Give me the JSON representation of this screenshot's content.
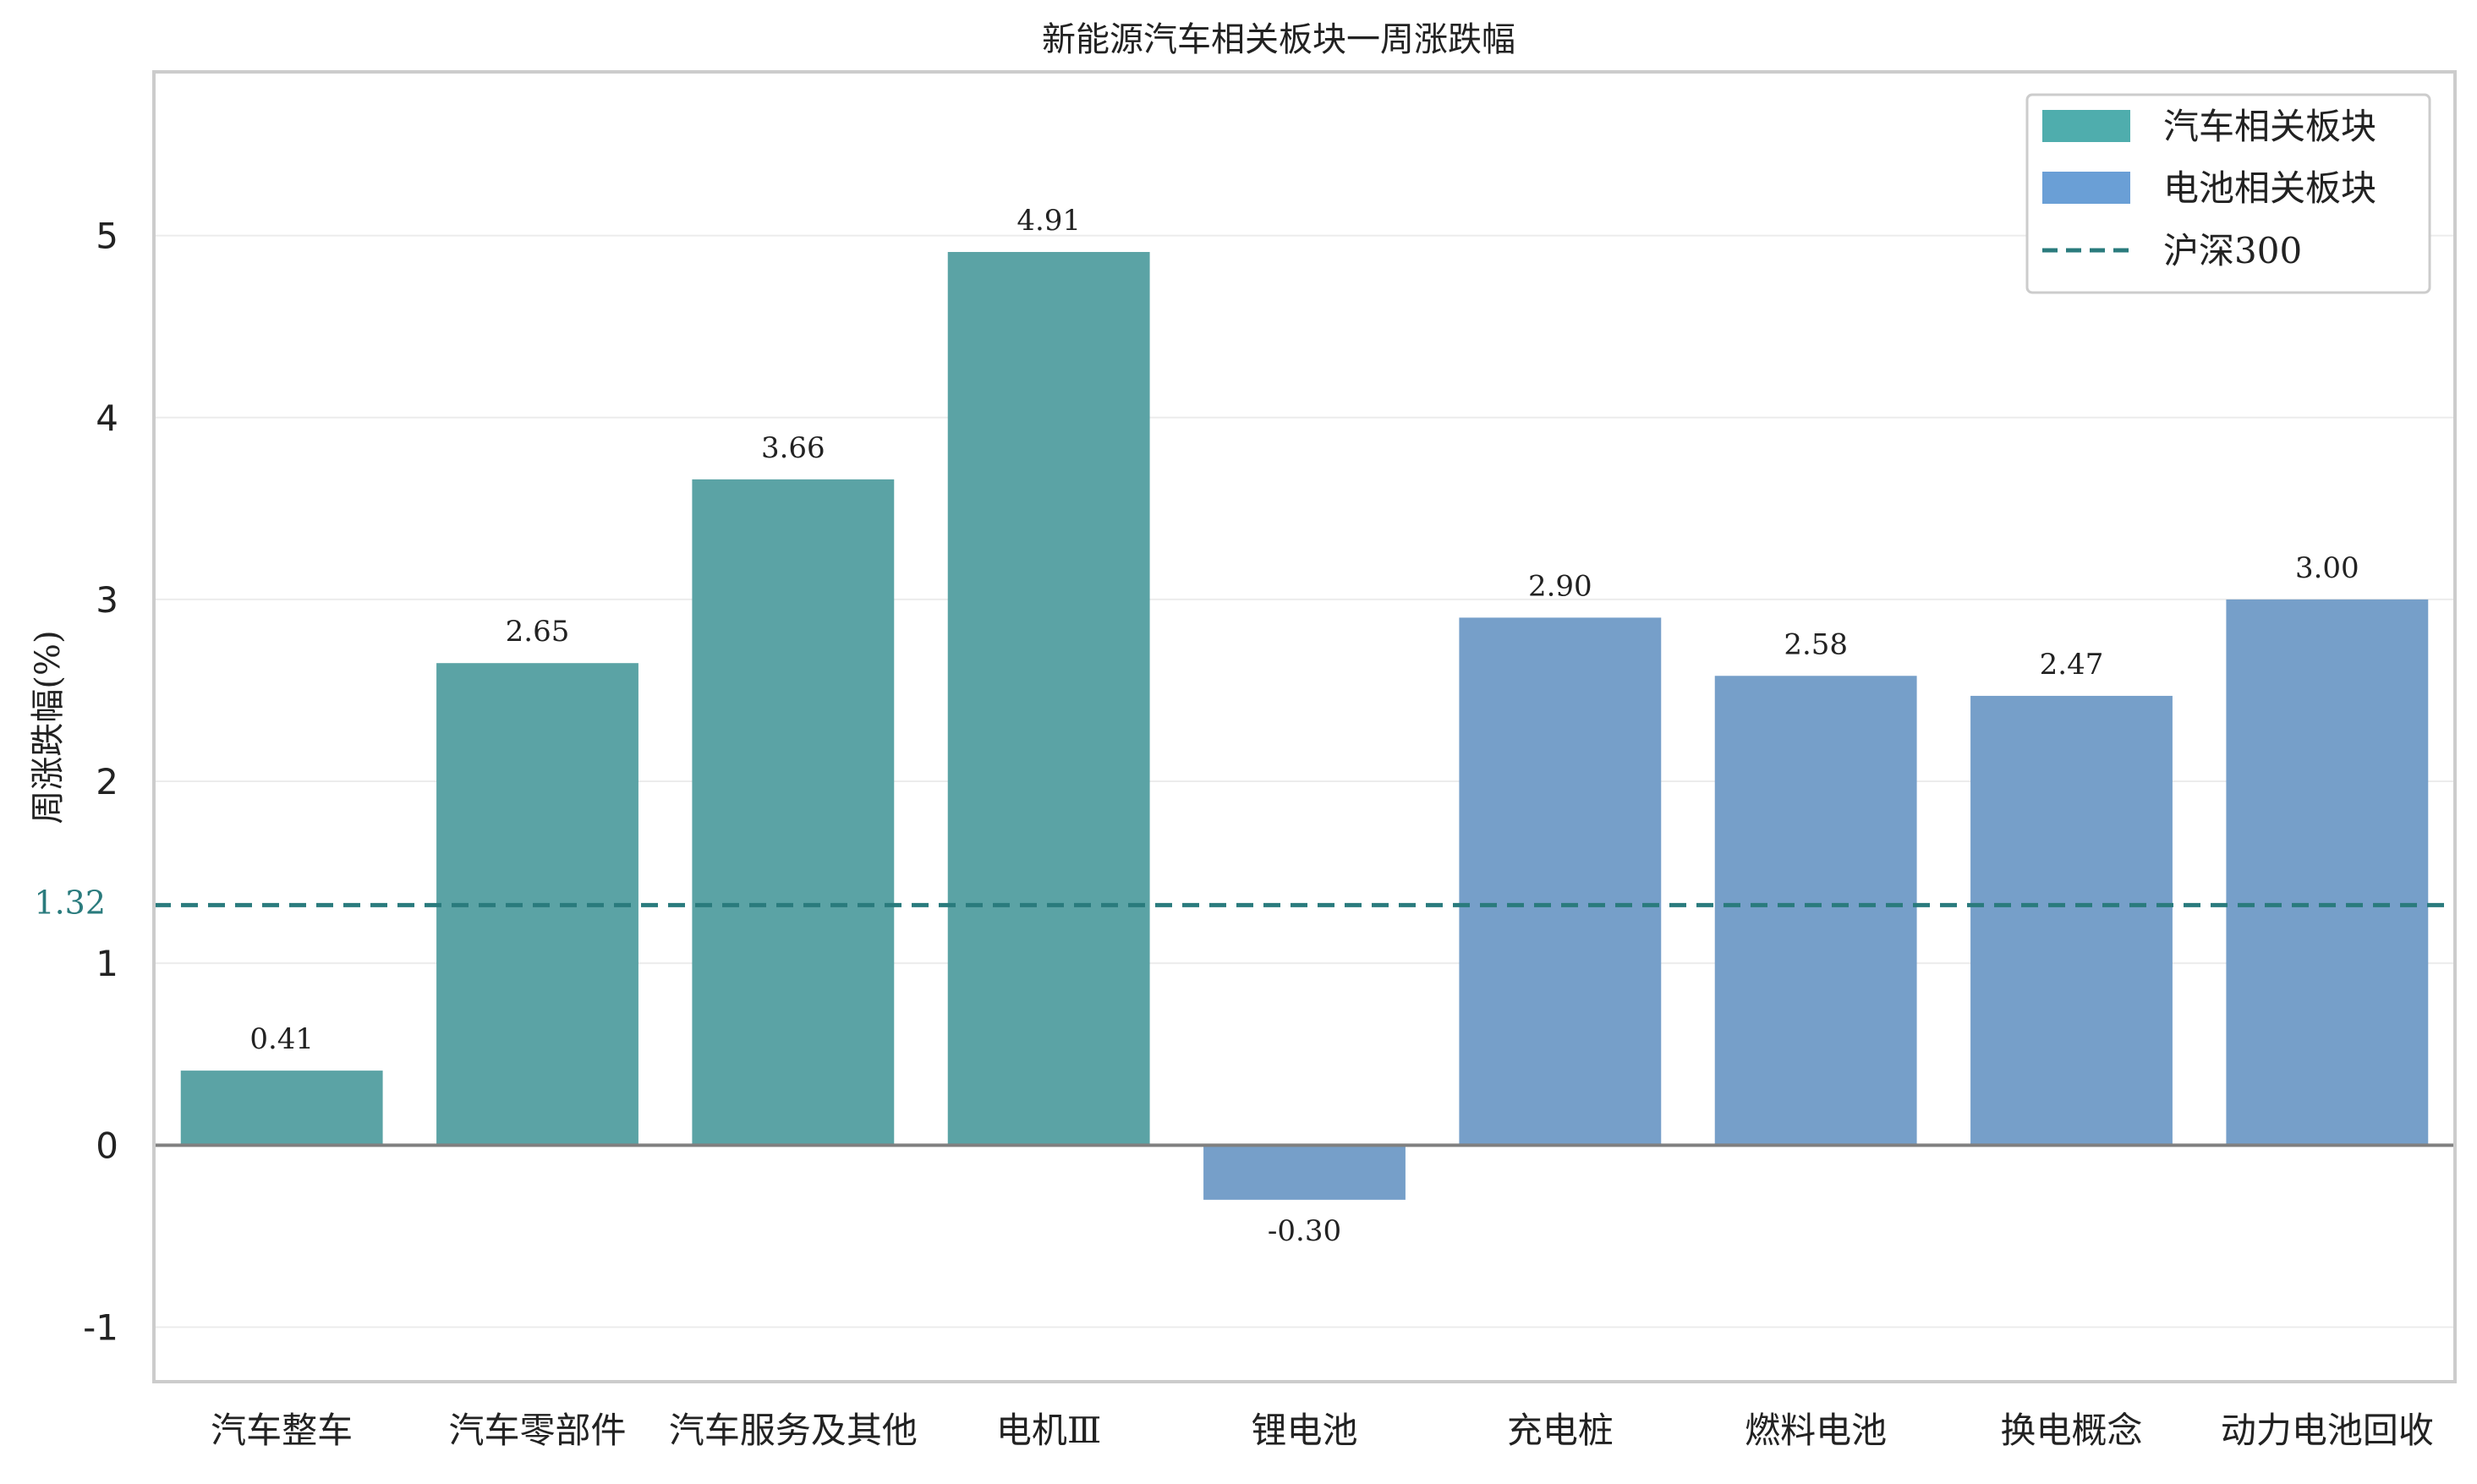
{
  "chart_data": {
    "type": "bar",
    "title": "新能源汽车相关板块一周涨跌幅",
    "xlabel": "",
    "ylabel": "周涨跌幅(%)",
    "categories": [
      "汽车整车",
      "汽车零部件",
      "汽车服务及其他",
      "电机Ⅲ",
      "锂电池",
      "充电桩",
      "燃料电池",
      "换电概念",
      "动力电池回收"
    ],
    "values": [
      0.41,
      2.65,
      3.66,
      4.91,
      -0.3,
      2.9,
      2.58,
      2.47,
      3.0
    ],
    "value_labels": [
      "0.41",
      "2.65",
      "3.66",
      "4.91",
      "-0.30",
      "2.90",
      "2.58",
      "2.47",
      "3.00"
    ],
    "groups": [
      "汽车相关板块",
      "汽车相关板块",
      "汽车相关板块",
      "汽车相关板块",
      "电池相关板块",
      "电池相关板块",
      "电池相关板块",
      "电池相关板块",
      "电池相关板块"
    ],
    "series": [
      {
        "name": "汽车相关板块",
        "color": "#5BA3A5",
        "legend_color": "#4FADAD"
      },
      {
        "name": "电池相关板块",
        "color": "#769FC9",
        "legend_color": "#6A9FD6"
      }
    ],
    "reference_line": {
      "name": "沪深300",
      "value": 1.32,
      "label": "1.32",
      "color": "#2A7B7D",
      "style": "dashed"
    },
    "ylim": [
      -1.3,
      5.9
    ],
    "yticks": [
      -1,
      0,
      1,
      2,
      3,
      4,
      5
    ],
    "ytick_labels": [
      "-1",
      "0",
      "1",
      "2",
      "3",
      "4",
      "5"
    ],
    "grid": true,
    "legend_position": "top-right"
  }
}
